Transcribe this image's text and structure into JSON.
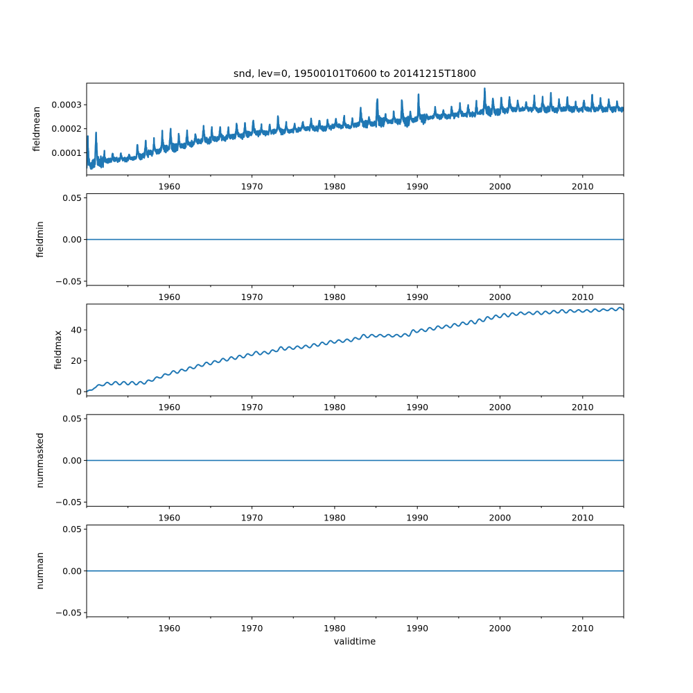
{
  "chart_data": {
    "type": "line",
    "title": "snd, lev=0, 19500101T0600 to 20141215T1800",
    "xlabel": "validtime",
    "xlim": [
      1950.0,
      2014.96
    ],
    "x_major_ticks": [
      1960,
      1970,
      1980,
      1990,
      2000,
      2010
    ],
    "x_tick_labels": [
      "1960",
      "1970",
      "1980",
      "1990",
      "2000",
      "2010"
    ],
    "x_minor_ticks": [
      1950,
      1955,
      1965,
      1975,
      1985,
      1995,
      2005,
      2015
    ],
    "line_color": "#1f77b4",
    "grid": false,
    "panels": [
      {
        "ylabel": "fieldmean",
        "ylim": [
          7.2e-06,
          0.00039
        ],
        "yticks": [
          0.0001,
          0.0002,
          0.0003
        ],
        "ytick_labels": [
          "0.0001",
          "0.0002",
          "0.0003"
        ],
        "seasonal": true,
        "annual_base": {
          "years": [
            1950,
            1951,
            1952,
            1953,
            1954,
            1955,
            1956,
            1957,
            1958,
            1959,
            1960,
            1961,
            1962,
            1963,
            1964,
            1965,
            1966,
            1967,
            1968,
            1969,
            1970,
            1971,
            1972,
            1973,
            1974,
            1975,
            1976,
            1977,
            1978,
            1979,
            1980,
            1981,
            1982,
            1983,
            1984,
            1985,
            1986,
            1987,
            1988,
            1989,
            1990,
            1991,
            1992,
            1993,
            1994,
            1995,
            1996,
            1997,
            1998,
            1999,
            2000,
            2001,
            2002,
            2003,
            2004,
            2005,
            2006,
            2007,
            2008,
            2009,
            2010,
            2011,
            2012,
            2013,
            2014,
            2015
          ],
          "low": [
            3e-05,
            6e-05,
            6e-05,
            7e-05,
            7e-05,
            7e-05,
            8e-05,
            9e-05,
            0.0001,
            0.00011,
            0.00012,
            0.00012,
            0.00013,
            0.00014,
            0.00015,
            0.00015,
            0.00016,
            0.00016,
            0.00017,
            0.00017,
            0.00018,
            0.00018,
            0.00018,
            0.00019,
            0.00019,
            0.00019,
            0.0002,
            0.0002,
            0.0002,
            0.0002,
            0.00021,
            0.00021,
            0.00021,
            0.00022,
            0.00022,
            0.00022,
            0.00023,
            0.00023,
            0.00023,
            0.00023,
            0.00024,
            0.00024,
            0.00025,
            0.00025,
            0.00025,
            0.00026,
            0.00026,
            0.00026,
            0.00027,
            0.00027,
            0.00027,
            0.00028,
            0.00028,
            0.00028,
            0.00028,
            0.00028,
            0.00028,
            0.00028,
            0.00028,
            0.00028,
            0.00028,
            0.00028,
            0.00028,
            0.00028,
            0.00028,
            0.00028
          ],
          "peak": [
            0.00015,
            0.00019,
            0.0001,
            0.0001,
            0.0001,
            9e-05,
            0.00014,
            0.00015,
            0.00015,
            0.00018,
            0.0002,
            0.00018,
            0.00019,
            0.00018,
            0.00021,
            0.0002,
            0.00021,
            0.0002,
            0.00022,
            0.00022,
            0.00024,
            0.00021,
            0.00022,
            0.00025,
            0.00022,
            0.00022,
            0.00023,
            0.00024,
            0.00024,
            0.00024,
            0.00024,
            0.00025,
            0.00024,
            0.00029,
            0.00025,
            0.00034,
            0.00026,
            0.00027,
            0.00033,
            0.00027,
            0.00034,
            0.00026,
            0.00029,
            0.00028,
            0.0003,
            0.0003,
            0.0003,
            0.00031,
            0.00037,
            0.00033,
            0.00033,
            0.00033,
            0.00032,
            0.00031,
            0.00033,
            0.00033,
            0.00034,
            0.00032,
            0.00033,
            0.00031,
            0.00032,
            0.00034,
            0.00032,
            0.00032,
            0.00031,
            0.00031
          ]
        }
      },
      {
        "ylabel": "fieldmin",
        "ylim": [
          -0.055,
          0.055
        ],
        "yticks": [
          -0.05,
          0.0,
          0.05
        ],
        "ytick_labels": [
          "−0.05",
          "0.00",
          "0.05"
        ],
        "constant": 0.0
      },
      {
        "ylabel": "fieldmax",
        "ylim": [
          -2.7,
          56.7
        ],
        "yticks": [
          0,
          20,
          40
        ],
        "ytick_labels": [
          "0",
          "20",
          "40"
        ],
        "seasonal_smooth": true,
        "annual_base": {
          "years": [
            1950,
            1951,
            1952,
            1953,
            1954,
            1955,
            1956,
            1957,
            1958,
            1959,
            1960,
            1961,
            1962,
            1963,
            1964,
            1965,
            1966,
            1967,
            1968,
            1969,
            1970,
            1971,
            1972,
            1973,
            1974,
            1975,
            1976,
            1977,
            1978,
            1979,
            1980,
            1981,
            1982,
            1983,
            1984,
            1985,
            1986,
            1987,
            1988,
            1989,
            1990,
            1991,
            1992,
            1993,
            1994,
            1995,
            1996,
            1997,
            1998,
            1999,
            2000,
            2001,
            2002,
            2003,
            2004,
            2005,
            2006,
            2007,
            2008,
            2009,
            2010,
            2011,
            2012,
            2013,
            2014,
            2015
          ],
          "low": [
            0,
            2.5,
            4,
            4.5,
            4.5,
            4.5,
            4.5,
            5,
            7,
            9,
            11,
            12,
            13.5,
            15,
            16.5,
            17.5,
            19,
            20,
            21,
            22,
            23.5,
            24,
            24.5,
            26,
            27,
            27.5,
            28,
            28.5,
            29.5,
            30.5,
            31.5,
            32,
            32.5,
            34,
            35,
            35.5,
            35.5,
            35.5,
            35.5,
            36,
            38.5,
            39,
            40,
            41,
            41.5,
            42.5,
            43.5,
            44,
            45.5,
            47,
            48,
            48.5,
            49.5,
            50,
            50,
            50,
            50.5,
            51,
            51,
            51.5,
            51.5,
            51.5,
            52,
            52.5,
            52.5,
            53
          ],
          "peak": [
            1,
            4.5,
            6,
            6.5,
            6.5,
            6.5,
            6.5,
            7.5,
            9.5,
            11.5,
            13.5,
            14.5,
            16,
            17.5,
            19,
            20,
            21.5,
            22.5,
            23.5,
            24.5,
            26,
            26,
            27,
            29,
            29,
            29.5,
            30,
            31,
            32,
            33,
            33.5,
            34,
            35,
            37,
            37,
            37,
            37,
            37,
            37.5,
            40,
            40.5,
            41.5,
            42.5,
            43,
            44,
            45,
            46,
            47,
            48.5,
            49.5,
            50.5,
            51,
            51.5,
            51.5,
            52,
            52,
            52.5,
            53,
            53,
            53,
            53,
            53.5,
            53.5,
            54,
            54.5,
            54.5
          ]
        }
      },
      {
        "ylabel": "nummasked",
        "ylim": [
          -0.055,
          0.055
        ],
        "yticks": [
          -0.05,
          0.0,
          0.05
        ],
        "ytick_labels": [
          "−0.05",
          "0.00",
          "0.05"
        ],
        "constant": 0.0
      },
      {
        "ylabel": "numnan",
        "ylim": [
          -0.055,
          0.055
        ],
        "yticks": [
          -0.05,
          0.0,
          0.05
        ],
        "ytick_labels": [
          "−0.05",
          "0.00",
          "0.05"
        ],
        "constant": 0.0
      }
    ]
  }
}
